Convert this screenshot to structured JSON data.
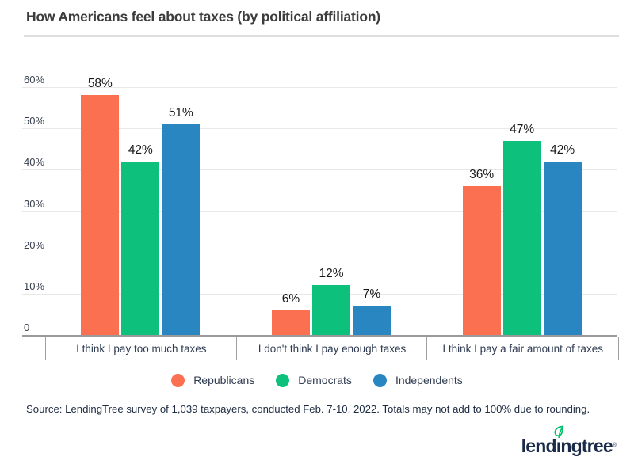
{
  "title": "How Americans feel about taxes (by political affiliation)",
  "chart_data": {
    "type": "bar",
    "title": "How Americans feel about taxes (by political affiliation)",
    "categories": [
      "I think I pay too much taxes",
      "I don't think I pay enough taxes",
      "I think I pay a fair amount of taxes"
    ],
    "series": [
      {
        "name": "Republicans",
        "color": "#FC7052",
        "values": [
          58,
          6,
          36
        ]
      },
      {
        "name": "Democrats",
        "color": "#0DC07C",
        "values": [
          42,
          12,
          47
        ]
      },
      {
        "name": "Independents",
        "color": "#2986C0",
        "values": [
          51,
          7,
          42
        ]
      }
    ],
    "ylim": [
      0,
      60
    ],
    "ytick_step": 10,
    "ytick_labels": [
      "0",
      "10%",
      "20%",
      "30%",
      "40%",
      "50%",
      "60%"
    ],
    "value_label_format": "percent",
    "grid": true,
    "legend_position": "bottom"
  },
  "source": "Source: LendingTree survey of 1,039 taxpayers, conducted Feb. 7-10, 2022. Totals may not add to 100% due to rounding.",
  "logo": {
    "text_pre": "lend",
    "text_i": "ı",
    "text_post": "ngtree",
    "reg": "®",
    "color": "#1A2B49",
    "leaf_color": "#00C06B"
  }
}
